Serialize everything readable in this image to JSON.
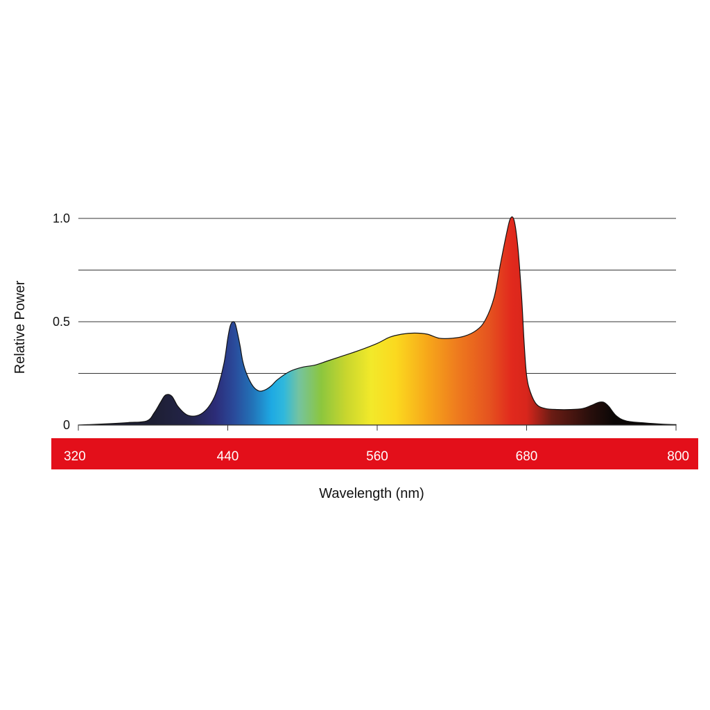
{
  "colors": {
    "band": "#e30f1a",
    "grid": "#333333",
    "outline": "#111111",
    "background": "#ffffff"
  },
  "chart_data": {
    "type": "area",
    "xlabel": "Wavelength (nm)",
    "ylabel": "Relative Power",
    "xlim": [
      320,
      800
    ],
    "ylim": [
      0,
      1.0
    ],
    "x_ticks": [
      "320",
      "440",
      "560",
      "680",
      "800"
    ],
    "y_ticks": [
      {
        "value": 0,
        "label": "0"
      },
      {
        "value": 0.25,
        "label": ""
      },
      {
        "value": 0.5,
        "label": "0.5"
      },
      {
        "value": 0.75,
        "label": ""
      },
      {
        "value": 1.0,
        "label": "1.0"
      }
    ],
    "grid": true,
    "fill": "visible-spectrum gradient",
    "spectral_stops": [
      {
        "nm": 380,
        "color": "#1e1f33"
      },
      {
        "nm": 410,
        "color": "#23244a"
      },
      {
        "nm": 430,
        "color": "#2c2c78"
      },
      {
        "nm": 445,
        "color": "#2a4a9a"
      },
      {
        "nm": 460,
        "color": "#2273b8"
      },
      {
        "nm": 475,
        "color": "#1ea9e3"
      },
      {
        "nm": 485,
        "color": "#30b8dc"
      },
      {
        "nm": 497,
        "color": "#74c3a0"
      },
      {
        "nm": 515,
        "color": "#8cc63e"
      },
      {
        "nm": 535,
        "color": "#c8d62e"
      },
      {
        "nm": 555,
        "color": "#f2e92a"
      },
      {
        "nm": 575,
        "color": "#fbd91f"
      },
      {
        "nm": 600,
        "color": "#f7a81a"
      },
      {
        "nm": 625,
        "color": "#ee7a1e"
      },
      {
        "nm": 650,
        "color": "#e5531f"
      },
      {
        "nm": 668,
        "color": "#e1291d"
      },
      {
        "nm": 680,
        "color": "#d8261c"
      },
      {
        "nm": 700,
        "color": "#6b1c14"
      },
      {
        "nm": 730,
        "color": "#2a0f0c"
      },
      {
        "nm": 750,
        "color": "#0b0706"
      }
    ],
    "series": [
      {
        "x": [
          320,
          340,
          360,
          375,
          381,
          386,
          390,
          395,
          400,
          407,
          415,
          422,
          428,
          432,
          437,
          440,
          442,
          444,
          446,
          448,
          450,
          452,
          455,
          460,
          465,
          470,
          475,
          480,
          490,
          500,
          510,
          520,
          530,
          545,
          560,
          570,
          580,
          590,
          600,
          610,
          620,
          630,
          640,
          647,
          654,
          659,
          664,
          667,
          670,
          673,
          676,
          678,
          680,
          683,
          688,
          695,
          705,
          715,
          725,
          732,
          738,
          742,
          746,
          752,
          760,
          775,
          790,
          800
        ],
        "y": [
          0.0,
          0.005,
          0.012,
          0.02,
          0.06,
          0.11,
          0.145,
          0.14,
          0.09,
          0.05,
          0.045,
          0.07,
          0.12,
          0.18,
          0.3,
          0.42,
          0.48,
          0.5,
          0.49,
          0.44,
          0.38,
          0.31,
          0.25,
          0.19,
          0.165,
          0.17,
          0.19,
          0.22,
          0.26,
          0.28,
          0.29,
          0.31,
          0.33,
          0.36,
          0.395,
          0.425,
          0.44,
          0.445,
          0.44,
          0.42,
          0.42,
          0.43,
          0.46,
          0.51,
          0.62,
          0.78,
          0.93,
          1.0,
          0.99,
          0.86,
          0.62,
          0.4,
          0.24,
          0.16,
          0.1,
          0.08,
          0.075,
          0.075,
          0.08,
          0.095,
          0.11,
          0.11,
          0.09,
          0.045,
          0.02,
          0.01,
          0.004,
          0.002
        ]
      }
    ]
  }
}
